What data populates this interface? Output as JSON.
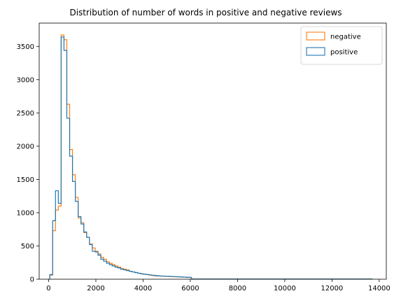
{
  "chart_data": {
    "type": "histogram",
    "title": "Distribution of number of words in positive and negative reviews",
    "xlabel": "",
    "ylabel": "",
    "xlim": [
      -400,
      14300
    ],
    "ylim": [
      0,
      3850
    ],
    "xticks": [
      0,
      2000,
      4000,
      6000,
      8000,
      10000,
      12000,
      14000
    ],
    "yticks": [
      0,
      500,
      1000,
      1500,
      2000,
      2500,
      3000,
      3500
    ],
    "grid": false,
    "legend_position": "top-right",
    "bin_edges": [
      50,
      170,
      290,
      410,
      530,
      650,
      770,
      890,
      1010,
      1130,
      1250,
      1370,
      1490,
      1610,
      1730,
      1850,
      1970,
      2090,
      2210,
      2330,
      2450,
      2570,
      2690,
      2810,
      2930,
      3050,
      3170,
      3290,
      3410,
      3530,
      3650,
      3770,
      3890,
      4010,
      4130,
      4250,
      4370,
      4490,
      4610,
      4730,
      4850,
      4970,
      5090,
      5210,
      5330,
      5450,
      5570,
      5690,
      5810,
      5930,
      6050,
      13700
    ],
    "series": [
      {
        "name": "negative",
        "color": "#ff7f0e",
        "values": [
          60,
          730,
          1040,
          1100,
          3670,
          3600,
          2630,
          1950,
          1570,
          1230,
          920,
          850,
          700,
          630,
          530,
          470,
          420,
          380,
          330,
          300,
          260,
          240,
          220,
          200,
          180,
          160,
          150,
          140,
          120,
          110,
          100,
          90,
          80,
          75,
          70,
          60,
          55,
          50,
          48,
          46,
          44,
          42,
          40,
          38,
          36,
          34,
          32,
          30,
          28,
          25,
          3
        ]
      },
      {
        "name": "positive",
        "color": "#1f77b4",
        "values": [
          70,
          880,
          1330,
          1140,
          3640,
          3440,
          2420,
          1850,
          1470,
          1170,
          940,
          830,
          710,
          630,
          520,
          420,
          410,
          360,
          300,
          270,
          240,
          220,
          200,
          180,
          170,
          150,
          140,
          130,
          120,
          110,
          100,
          90,
          80,
          75,
          70,
          65,
          60,
          55,
          50,
          48,
          46,
          44,
          42,
          40,
          38,
          36,
          34,
          32,
          30,
          28,
          3
        ]
      }
    ]
  }
}
